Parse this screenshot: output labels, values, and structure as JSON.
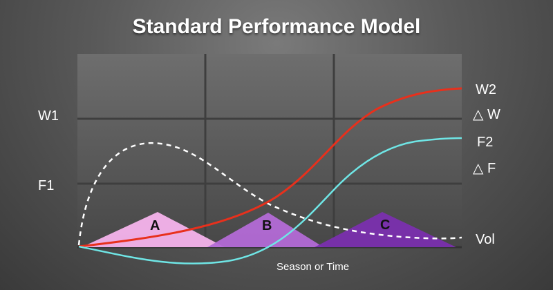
{
  "title": "Standard Performance Model",
  "colors": {
    "work": "#e8301c",
    "fitness": "#6fe6e6",
    "volume": "#ffffff",
    "zone_a": "#f6b3ec",
    "zone_b": "#b36ad6",
    "zone_c": "#7a2fae"
  },
  "labels": {
    "w1": "W1",
    "f1": "F1",
    "w2": "W2",
    "delta_w": "△ W",
    "f2": "F2",
    "delta_f": "△ F",
    "vol": "Vol",
    "x_axis": "Season or Time"
  },
  "zones": [
    {
      "name": "A",
      "fill": "#f6b3ec"
    },
    {
      "name": "B",
      "fill": "#b36ad6"
    },
    {
      "name": "C",
      "fill": "#7a2fae"
    }
  ],
  "chart_data": {
    "type": "line",
    "series": [
      {
        "label": "W2",
        "color": "#e8301c"
      },
      {
        "label": "F2",
        "color": "#6fe6e6"
      },
      {
        "label": "Vol",
        "color": "#ffffff"
      }
    ]
  }
}
